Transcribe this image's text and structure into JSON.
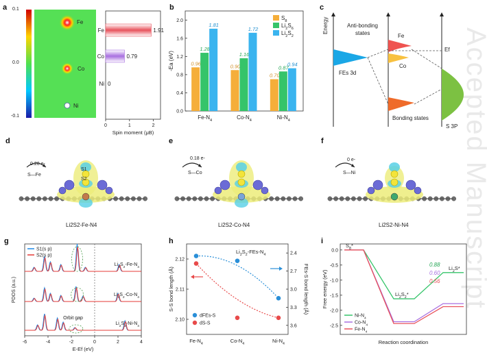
{
  "watermark": "Accepted Manuscript",
  "panel_a": {
    "letter": "a",
    "colorbar_ticks": [
      "0.1",
      "0.0",
      "-0.1"
    ],
    "map_labels": [
      "Fe",
      "Co",
      "Ni"
    ],
    "bars": [
      {
        "label": "Fe",
        "value": 1.91,
        "value_text": "1.91",
        "color": "#e8525c"
      },
      {
        "label": "Co",
        "value": 0.79,
        "value_text": "0.79",
        "color": "#a86fe0"
      },
      {
        "label": "Ni",
        "value": 0,
        "value_text": "0",
        "color": "#7fbf5a"
      }
    ],
    "xticks": [
      "0",
      "1",
      "2"
    ],
    "xlabel": "Spin moment (μB)"
  },
  "panel_b": {
    "letter": "b",
    "ylabel": "-Ea (eV)",
    "yticks": [
      "0.0",
      "0.4",
      "0.8",
      "1.2",
      "1.6",
      "2.0"
    ],
    "legend": [
      "S8",
      "Li2S6",
      "Li2S2"
    ],
    "colors": [
      "#f5ae3a",
      "#35c46a",
      "#3ab4ef"
    ],
    "label_colors": [
      "#d1902a",
      "#23a653",
      "#1f8fcf"
    ],
    "chart_data": {
      "type": "bar",
      "categories": [
        "Fe-N4",
        "Co-N4",
        "Ni-N4"
      ],
      "series": [
        {
          "name": "S8",
          "values": [
            0.96,
            0.9,
            0.7
          ],
          "labels": [
            "0.96",
            "0.90",
            "0.70"
          ]
        },
        {
          "name": "Li2S6",
          "values": [
            1.28,
            1.16,
            0.87
          ],
          "labels": [
            "1.28",
            "1.16",
            "0.87"
          ]
        },
        {
          "name": "Li2S2",
          "values": [
            1.81,
            1.72,
            0.94
          ],
          "labels": [
            "1.81",
            "1.72",
            "0.94"
          ]
        }
      ],
      "ylabel": "-Ea (eV)",
      "ylim": [
        0,
        2.2
      ]
    }
  },
  "panel_c": {
    "letter": "c",
    "energy": "Energy",
    "antibonding": "Anti-bonding",
    "states": "states",
    "fe": "Fe",
    "co": "Co",
    "ef": "Ef",
    "fes3d": "FEs 3d",
    "bonding": "Bonding states",
    "s3p": "S 3P"
  },
  "structures": [
    {
      "letter": "d",
      "charge": "0.20 e-",
      "bond": "S—Fe",
      "caption": "Li2S2-Fe-N4",
      "s1": "S1",
      "s2": "S2"
    },
    {
      "letter": "e",
      "charge": "0.18 e-",
      "bond": "S—Co",
      "caption": "Li2S2-Co-N4"
    },
    {
      "letter": "f",
      "charge": "0 e-",
      "bond": "S—Ni",
      "caption": "Li2S2-Ni-N4"
    }
  ],
  "panel_g": {
    "letter": "g",
    "legend": [
      "S1(s p)",
      "S2(s p)"
    ],
    "traces": [
      "Li2S2-Fe-N4",
      "Li2S2-Co-N4",
      "Li2S2-Ni-N4"
    ],
    "orbit_gap": "Orbit gap",
    "xticks": [
      "-6",
      "-4",
      "-2",
      "0",
      "2",
      "4"
    ],
    "xlabel": "E-Ef (eV)",
    "ylabel": "PDOS (a.u.)"
  },
  "panel_h": {
    "letter": "h",
    "title": "Li2S2-FEs-N4",
    "ylabel_left": "S-S bond length (Å)",
    "ylabel_right": "FEs-S bond length (Å)",
    "left_ticks": [
      "2.10",
      "2.11",
      "2.12"
    ],
    "right_ticks": [
      "2.4",
      "2.7",
      "3.0",
      "3.3",
      "3.6"
    ],
    "categories": [
      "Fe-N4",
      "Co-N4",
      "Ni-N4"
    ],
    "legend": [
      "dFEs-S",
      "dS-S"
    ],
    "chart_data": {
      "type": "scatter",
      "categories": [
        "Fe-N4",
        "Co-N4",
        "Ni-N4"
      ],
      "series": [
        {
          "name": "dFEs-S",
          "axis": "right",
          "values": [
            2.45,
            2.53,
            3.15
          ]
        },
        {
          "name": "dS-S",
          "axis": "left",
          "values": [
            2.1185,
            2.1005,
            2.1005
          ]
        }
      ],
      "ylim_left": [
        2.095,
        2.125
      ],
      "ylim_right": [
        3.75,
        2.25
      ]
    }
  },
  "panel_i": {
    "letter": "i",
    "ylabel": "Free energy (eV)",
    "xlabel": "Reaction coordination",
    "yticks": [
      "0.0",
      "-0.5",
      "-1.0",
      "-1.5",
      "-2.0",
      "-2.5"
    ],
    "species": [
      "S8*",
      "Li2S2*",
      "Li2S*"
    ],
    "barriers": [
      {
        "text": "0.88",
        "color": "#23a653"
      },
      {
        "text": "0.60",
        "color": "#a86fe0"
      },
      {
        "text": "0.56",
        "color": "#e8525c"
      }
    ],
    "legend": [
      "Ni-N4",
      "Co-N4",
      "Fe-N4"
    ],
    "chart_data": {
      "type": "line",
      "x": [
        0,
        1,
        2,
        3
      ],
      "series": [
        {
          "name": "Ni-N4",
          "values": [
            0,
            -1.05,
            -1.62,
            -0.75
          ],
          "color": "#35c46a"
        },
        {
          "name": "Co-N4",
          "values": [
            0,
            -1.05,
            -2.38,
            -1.78
          ],
          "color": "#a86fe0"
        },
        {
          "name": "Fe-N4",
          "values": [
            0,
            -1.05,
            -2.44,
            -1.88
          ],
          "color": "#e8525c"
        }
      ],
      "ylim": [
        -2.8,
        0.2
      ]
    }
  }
}
